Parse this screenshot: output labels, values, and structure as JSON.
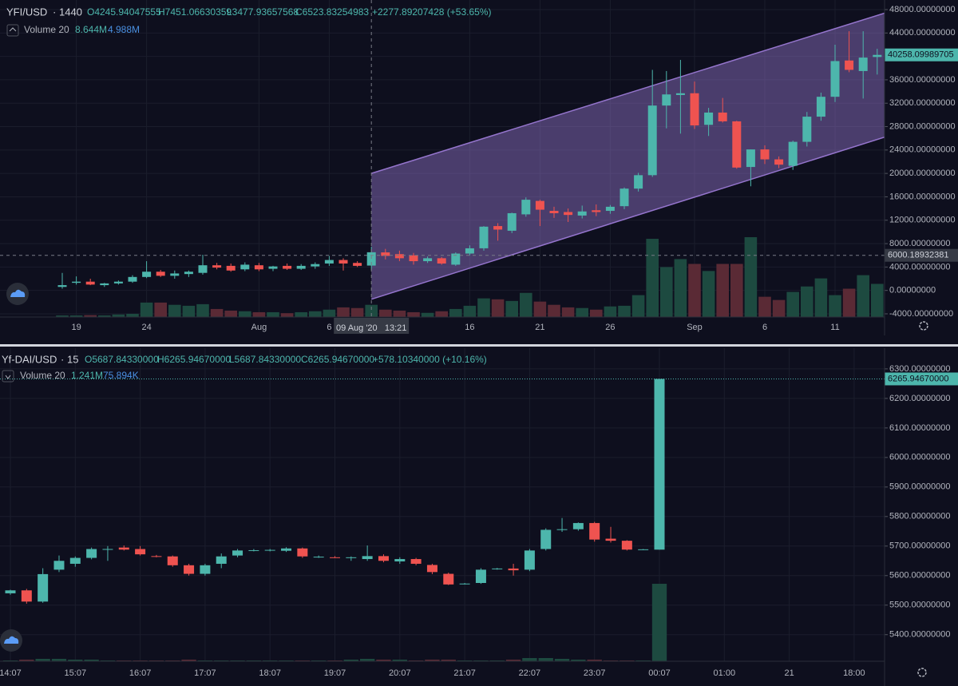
{
  "chart_data": [
    {
      "type": "candlestick",
      "legend": {
        "symbol": "YFI/USD",
        "interval": "1440",
        "open": "O4245.94047555",
        "high": "H7451.06630359",
        "low": "L3477.93657568",
        "close": "C6523.83254983",
        "change": "+2277.89207428 (+53.65%)",
        "volume_label": "Volume 20",
        "volume_ma": "8.644M",
        "volume_value": "4.988M"
      },
      "categories": [
        null,
        "19",
        null,
        null,
        null,
        null,
        "24",
        null,
        null,
        null,
        null,
        null,
        null,
        null,
        "Aug",
        null,
        null,
        null,
        null,
        "6",
        null,
        null,
        null,
        null,
        null,
        null,
        null,
        null,
        null,
        "16",
        null,
        null,
        null,
        null,
        "21",
        null,
        null,
        null,
        null,
        "26",
        null,
        null,
        null,
        null,
        null,
        "Sep",
        null,
        null,
        null,
        null,
        "6",
        null,
        null,
        null,
        null,
        "11",
        null,
        null,
        null
      ],
      "open": [
        600,
        1300,
        1500,
        900,
        1200,
        1500,
        2300,
        3200,
        2500,
        2800,
        3000,
        4300,
        4200,
        3600,
        4300,
        3700,
        4200,
        3700,
        4100,
        4600,
        5200,
        4700,
        4245.94047555,
        6500,
        6200,
        6000,
        5000,
        5500,
        4400,
        6300,
        7200,
        11000,
        10200,
        13000,
        15300,
        13600,
        13400,
        12800,
        13700,
        13600,
        14400,
        17400,
        19700,
        31600,
        33400,
        33700,
        28300,
        30400,
        28900,
        21100,
        24100,
        22400,
        21300,
        25400,
        29700,
        33100,
        39300,
        37500,
        39900
      ],
      "high": [
        3000,
        2400,
        2000,
        1300,
        1700,
        2600,
        5000,
        3500,
        3400,
        3400,
        6100,
        4700,
        4600,
        4800,
        4700,
        4200,
        4600,
        4500,
        4800,
        5900,
        5500,
        5000,
        7451.06630359,
        7100,
        6800,
        6400,
        5800,
        5700,
        6500,
        7700,
        11000,
        11500,
        13300,
        15900,
        15500,
        14300,
        14000,
        14500,
        14700,
        14600,
        17600,
        20100,
        37700,
        37500,
        39400,
        35700,
        31200,
        32900,
        29000,
        24100,
        24800,
        22900,
        25600,
        30500,
        33800,
        42000,
        44300,
        44300,
        41300
      ],
      "low": [
        300,
        1000,
        900,
        600,
        1000,
        1300,
        2100,
        2300,
        2000,
        2300,
        2700,
        3600,
        3200,
        3300,
        3300,
        3300,
        3500,
        3500,
        3700,
        4200,
        3400,
        4000,
        3477.93657568,
        5300,
        5000,
        4400,
        4700,
        4400,
        4200,
        6000,
        6800,
        8500,
        9800,
        12600,
        11000,
        12400,
        11700,
        12300,
        12700,
        13100,
        13900,
        16900,
        19400,
        27700,
        26800,
        27600,
        26400,
        28700,
        20800,
        17800,
        21600,
        20900,
        20600,
        24600,
        29000,
        32200,
        37300,
        32800,
        36900
      ],
      "close": [
        900,
        1500,
        1000,
        1200,
        1500,
        2300,
        3200,
        2500,
        2900,
        3200,
        4300,
        3900,
        3400,
        4400,
        3600,
        4100,
        3700,
        4200,
        4500,
        5200,
        4600,
        4200,
        6523.83254983,
        5900,
        5500,
        5000,
        5500,
        4600,
        6300,
        7200,
        10900,
        10400,
        13200,
        15500,
        13800,
        13200,
        12900,
        13500,
        13400,
        14300,
        17400,
        19700,
        31600,
        33500,
        33700,
        28200,
        30400,
        28900,
        21000,
        24100,
        22400,
        21500,
        25400,
        29700,
        33100,
        39200,
        37700,
        39800,
        40258.09989705
      ],
      "volume": [
        0.5,
        0.5,
        0.6,
        0.5,
        0.8,
        1.0,
        4.5,
        4.5,
        3.8,
        3.5,
        4.0,
        2.5,
        2.0,
        1.8,
        1.5,
        1.5,
        1.2,
        1.5,
        1.8,
        2.3,
        3.0,
        2.8,
        3.8,
        2.3,
        2.0,
        1.5,
        1.3,
        1.8,
        2.5,
        3.5,
        5.8,
        5.5,
        5.0,
        7.5,
        4.8,
        3.8,
        3.0,
        2.8,
        2.3,
        3.3,
        3.5,
        6.8,
        24.3,
        15.5,
        18.0,
        16.5,
        14.3,
        16.5,
        16.5,
        24.8,
        6.3,
        5.3,
        7.8,
        9.5,
        12.0,
        6.8,
        8.8,
        13.0,
        10.3
      ],
      "ylim": [
        -4550,
        49640
      ],
      "yticks": [
        {
          "value": 48000,
          "label": "48000.00000000"
        },
        {
          "value": 44000,
          "label": "44000.00000000"
        },
        {
          "value": 40000,
          "label": "40000.00000000"
        },
        {
          "value": 36000,
          "label": "36000.00000000"
        },
        {
          "value": 32000,
          "label": "32000.00000000"
        },
        {
          "value": 28000,
          "label": "28000.00000000"
        },
        {
          "value": 24000,
          "label": "24000.00000000"
        },
        {
          "value": 20000,
          "label": "20000.00000000"
        },
        {
          "value": 16000,
          "label": "16000.00000000"
        },
        {
          "value": 12000,
          "label": "12000.00000000"
        },
        {
          "value": 8000,
          "label": "8000.00000000"
        },
        {
          "value": 4000,
          "label": "4000.00000000"
        },
        {
          "value": 0,
          "label": "0.00000000"
        },
        {
          "value": -4000,
          "label": "-4000.00000000"
        }
      ],
      "last_price": {
        "value": 40258.09989705,
        "label": "40258.09989705"
      },
      "last_price_line": false,
      "crosshair": {
        "index": 22,
        "time_label": "09 Aug '20   13:21",
        "price": {
          "value": 6000.18932381,
          "label": "6000.18932381"
        }
      },
      "channel": {
        "start": 22,
        "end": 58,
        "upper": [
          20000,
          47000
        ],
        "lower": [
          -1500,
          25800
        ],
        "color": "#9575cd"
      },
      "up_color": "#4db6ac",
      "down_color": "#ef5350",
      "volume_up_color": "#1d4a40",
      "volume_down_color": "#5a2a35",
      "grid": true
    },
    {
      "type": "candlestick",
      "legend": {
        "symbol": "Yf-DAI/USD",
        "interval": "15",
        "open": "O5687.84330000",
        "high": "H6265.94670000",
        "low": "L5687.84330000",
        "close": "C6265.94670000",
        "change": "+578.10340000 (+10.16%)",
        "volume_label": "Volume 20",
        "volume_ma": "1.241M",
        "volume_value": "75.894K"
      },
      "categories": [
        "14:07",
        null,
        null,
        null,
        "15:07",
        null,
        null,
        null,
        "16:07",
        null,
        null,
        null,
        "17:07",
        null,
        null,
        null,
        "18:07",
        null,
        null,
        null,
        "19:07",
        null,
        null,
        null,
        "20:07",
        null,
        null,
        null,
        "21:07",
        null,
        null,
        null,
        "22:07",
        null,
        null,
        null,
        "23:07",
        null,
        null,
        null,
        "00:07"
      ],
      "future_categories": [
        "01:00",
        "21",
        "18:00"
      ],
      "open": [
        5540,
        5550,
        5512,
        5620,
        5640,
        5660,
        5688,
        5695,
        5690,
        5666,
        5665,
        5635,
        5606,
        5640,
        5668,
        5685,
        5686,
        5684,
        5692,
        5663,
        5662,
        5660,
        5656,
        5666,
        5648,
        5656,
        5636,
        5606,
        5572,
        5575,
        5622,
        5624,
        5620,
        5690,
        5755,
        5757,
        5778,
        5725,
        5718,
        5688,
        5687.8433
      ],
      "high": [
        5552,
        5555,
        5625,
        5668,
        5665,
        5695,
        5700,
        5702,
        5700,
        5670,
        5668,
        5640,
        5640,
        5675,
        5690,
        5690,
        5690,
        5696,
        5695,
        5668,
        5666,
        5665,
        5702,
        5672,
        5662,
        5660,
        5640,
        5610,
        5575,
        5625,
        5626,
        5640,
        5690,
        5760,
        5795,
        5780,
        5782,
        5765,
        5720,
        5690,
        6265.9467
      ],
      "low": [
        5535,
        5505,
        5508,
        5612,
        5630,
        5655,
        5650,
        5685,
        5668,
        5662,
        5630,
        5600,
        5600,
        5625,
        5662,
        5682,
        5682,
        5680,
        5660,
        5660,
        5660,
        5650,
        5650,
        5645,
        5640,
        5635,
        5605,
        5568,
        5570,
        5572,
        5620,
        5600,
        5615,
        5685,
        5748,
        5752,
        5715,
        5712,
        5685,
        5686,
        5687.8433
      ],
      "close": [
        5550,
        5512,
        5605,
        5650,
        5660,
        5690,
        5690,
        5688,
        5672,
        5665,
        5635,
        5606,
        5635,
        5665,
        5685,
        5686,
        5687,
        5692,
        5665,
        5664,
        5661,
        5662,
        5666,
        5650,
        5656,
        5640,
        5612,
        5570,
        5573,
        5620,
        5624,
        5618,
        5685,
        5755,
        5757,
        5778,
        5722,
        5718,
        5688,
        5689,
        6265.9467
      ],
      "volume": [
        0.1,
        0.2,
        0.3,
        0.3,
        0.2,
        0.2,
        0.1,
        0.1,
        0.1,
        0.1,
        0.1,
        0.2,
        0.1,
        0.1,
        0.1,
        0.1,
        0.1,
        0.1,
        0.1,
        0.1,
        0.1,
        0.2,
        0.3,
        0.2,
        0.2,
        0.1,
        0.2,
        0.2,
        0.1,
        0.1,
        0.1,
        0.2,
        0.4,
        0.4,
        0.3,
        0.2,
        0.2,
        0.1,
        0.1,
        0.1,
        9.7
      ],
      "ylim": [
        5310,
        6370
      ],
      "yticks": [
        {
          "value": 6300,
          "label": "6300.00000000"
        },
        {
          "value": 6200,
          "label": "6200.00000000"
        },
        {
          "value": 6100,
          "label": "6100.00000000"
        },
        {
          "value": 6000,
          "label": "6000.00000000"
        },
        {
          "value": 5900,
          "label": "5900.00000000"
        },
        {
          "value": 5800,
          "label": "5800.00000000"
        },
        {
          "value": 5700,
          "label": "5700.00000000"
        },
        {
          "value": 5600,
          "label": "5600.00000000"
        },
        {
          "value": 5500,
          "label": "5500.00000000"
        },
        {
          "value": 5400,
          "label": "5400.00000000"
        }
      ],
      "last_price": {
        "value": 6265.9467,
        "label": "6265.94670000"
      },
      "last_price_line": true,
      "up_color": "#4db6ac",
      "down_color": "#ef5350",
      "volume_up_color": "#1d4a40",
      "volume_down_color": "#5a2a35",
      "grid": true
    }
  ]
}
